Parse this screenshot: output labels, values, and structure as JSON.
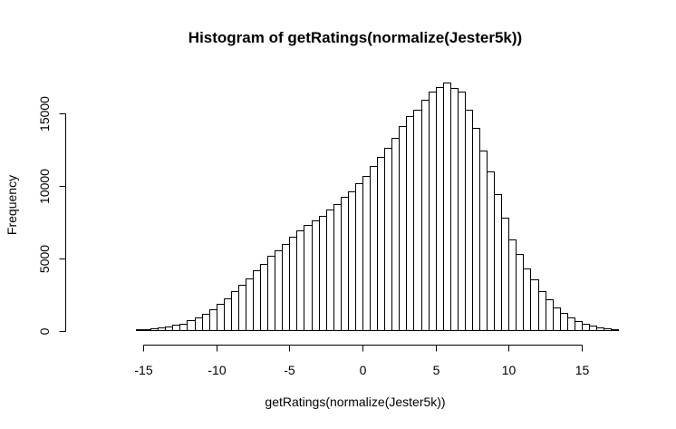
{
  "chart_data": {
    "type": "bar",
    "title": "Histogram of getRatings(normalize(Jester5k))",
    "xlabel": "getRatings(normalize(Jester5k))",
    "ylabel": "Frequency",
    "xlim": [
      -18,
      17
    ],
    "ylim": [
      0,
      17000
    ],
    "xticks": [
      -15,
      -10,
      -5,
      0,
      5,
      10,
      15
    ],
    "xtick_labels": [
      "-15",
      "-10",
      "-5",
      "0",
      "5",
      "10",
      "15"
    ],
    "yticks": [
      0,
      5000,
      10000,
      15000
    ],
    "ytick_labels": [
      "0",
      "5000",
      "10000",
      "15000"
    ],
    "bin_start": -16.5,
    "bin_width": 0.5,
    "values": [
      30,
      50,
      80,
      120,
      170,
      230,
      300,
      380,
      500,
      700,
      900,
      1150,
      1450,
      1850,
      2250,
      2700,
      3150,
      3600,
      4150,
      4600,
      5150,
      5550,
      6000,
      6450,
      6900,
      7300,
      7600,
      7900,
      8350,
      8750,
      9200,
      9600,
      10150,
      10650,
      11350,
      11950,
      12600,
      13300,
      14100,
      14800,
      15250,
      15900,
      16450,
      16800,
      17100,
      16750,
      16450,
      15250,
      13950,
      12400,
      11000,
      9400,
      7800,
      6300,
      5300,
      4300,
      3550,
      2700,
      2150,
      1600,
      1250,
      900,
      650,
      500,
      350,
      250,
      150,
      90,
      50,
      30,
      20,
      10
    ]
  }
}
